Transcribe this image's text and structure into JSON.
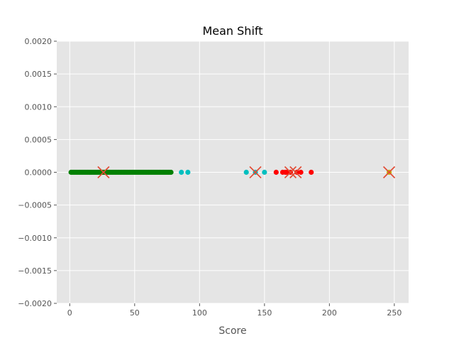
{
  "chart_data": {
    "type": "scatter",
    "title": "Mean Shift",
    "xlabel": "Score",
    "ylabel": "",
    "xlim": [
      -10,
      261
    ],
    "ylim": [
      -0.002,
      0.002
    ],
    "xticks": [
      0,
      50,
      100,
      150,
      200,
      250
    ],
    "yticks": [
      -0.002,
      -0.0015,
      -0.001,
      -0.0005,
      0.0,
      0.0005,
      0.001,
      0.0015,
      0.002
    ],
    "ytick_labels": [
      "−0.0020",
      "−0.0015",
      "−0.0010",
      "−0.0005",
      "0.0000",
      "0.0005",
      "0.0010",
      "0.0015",
      "0.0020"
    ],
    "xtick_labels": [
      "0",
      "50",
      "100",
      "150",
      "200",
      "250"
    ],
    "grid": true,
    "background": "#e5e5e5",
    "series": [
      {
        "color": "#008000",
        "x": [
          1,
          2,
          3,
          4,
          5,
          6,
          7,
          8,
          9,
          10,
          11,
          12,
          13,
          14,
          15,
          16,
          17,
          18,
          19,
          20,
          21,
          22,
          23,
          24,
          25,
          26,
          27,
          28,
          29,
          30,
          31,
          32,
          33,
          34,
          35,
          36,
          37,
          38,
          39,
          40,
          41,
          42,
          43,
          44,
          45,
          46,
          47,
          48,
          49,
          50,
          51,
          52,
          53,
          54,
          55,
          56,
          57,
          58,
          59,
          60,
          61,
          62,
          63,
          64,
          65,
          66,
          67,
          68,
          69,
          70,
          71,
          72,
          73,
          74,
          75,
          76,
          77,
          78
        ],
        "y": 0
      },
      {
        "color": "#00bfbf",
        "x": [
          86,
          91,
          136,
          143,
          150
        ],
        "y": 0
      },
      {
        "color": "#ff0000",
        "x": [
          159,
          164,
          166,
          167,
          170,
          175,
          178,
          186
        ],
        "y": 0
      },
      {
        "color": "#bfbf00",
        "x": [
          246
        ],
        "y": 0
      }
    ],
    "centroids": {
      "marker": "x",
      "color": "#e24a33",
      "x": [
        26,
        143,
        170,
        174,
        246
      ],
      "y": 0
    }
  }
}
